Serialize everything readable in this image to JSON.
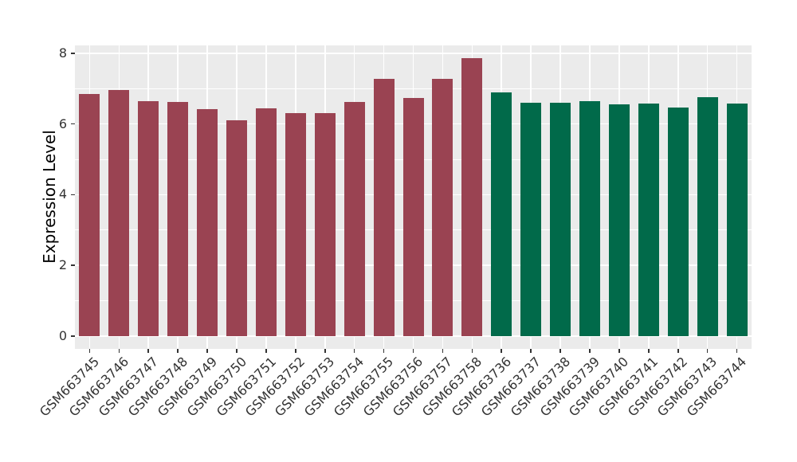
{
  "chart_data": {
    "type": "bar",
    "title": "",
    "xlabel": "",
    "ylabel": "Expression Level",
    "legend": "none",
    "grid": true,
    "label_rotation_deg": 45,
    "panel_bg": "#EBEBEB",
    "grid_color": "#FFFFFF",
    "tick_color": "#333333",
    "group_colors": [
      "#9A4352",
      "#016A4A"
    ],
    "y_ticks": [
      0,
      2,
      4,
      6,
      8
    ],
    "y_minor_ticks": [
      1,
      3,
      5,
      7
    ],
    "ylim": [
      -0.36,
      8.22
    ],
    "categories": [
      "GSM663745",
      "GSM663746",
      "GSM663747",
      "GSM663748",
      "GSM663749",
      "GSM663750",
      "GSM663751",
      "GSM663752",
      "GSM663753",
      "GSM663754",
      "GSM663755",
      "GSM663756",
      "GSM663757",
      "GSM663758",
      "GSM663736",
      "GSM663737",
      "GSM663738",
      "GSM663739",
      "GSM663740",
      "GSM663741",
      "GSM663742",
      "GSM663743",
      "GSM663744"
    ],
    "values": [
      6.85,
      6.95,
      6.65,
      6.62,
      6.41,
      6.1,
      6.44,
      6.31,
      6.31,
      6.63,
      7.27,
      6.73,
      7.27,
      7.85,
      6.89,
      6.59,
      6.59,
      6.64,
      6.55,
      6.58,
      6.47,
      6.76,
      6.58
    ],
    "colors": [
      "#9A4352",
      "#9A4352",
      "#9A4352",
      "#9A4352",
      "#9A4352",
      "#9A4352",
      "#9A4352",
      "#9A4352",
      "#9A4352",
      "#9A4352",
      "#9A4352",
      "#9A4352",
      "#9A4352",
      "#9A4352",
      "#016A4A",
      "#016A4A",
      "#016A4A",
      "#016A4A",
      "#016A4A",
      "#016A4A",
      "#016A4A",
      "#016A4A",
      "#016A4A"
    ]
  }
}
